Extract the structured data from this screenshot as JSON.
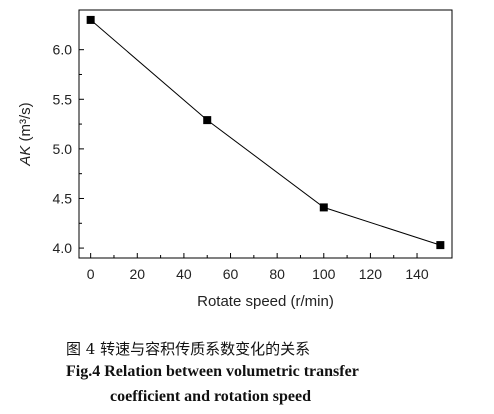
{
  "chart_data": {
    "type": "line",
    "x": [
      0,
      50,
      100,
      150
    ],
    "series": [
      {
        "values": [
          6.3,
          5.29,
          4.41,
          4.03
        ]
      }
    ],
    "xlabel": "Rotate speed (r/min)",
    "ylabel": "AK (m³/s)",
    "xlim": [
      -5,
      155
    ],
    "ylim": [
      3.9,
      6.4
    ],
    "xticks": [
      0,
      20,
      40,
      60,
      80,
      100,
      120,
      140
    ],
    "yticks": [
      4.0,
      4.5,
      5.0,
      5.5,
      6.0
    ],
    "grid": false,
    "marker": "square"
  },
  "caption": {
    "cn": "图 4  转速与容积传质系数变化的关系",
    "en_line1": "Fig.4 Relation between volumetric transfer",
    "en_line2": "coefficient and rotation speed"
  }
}
